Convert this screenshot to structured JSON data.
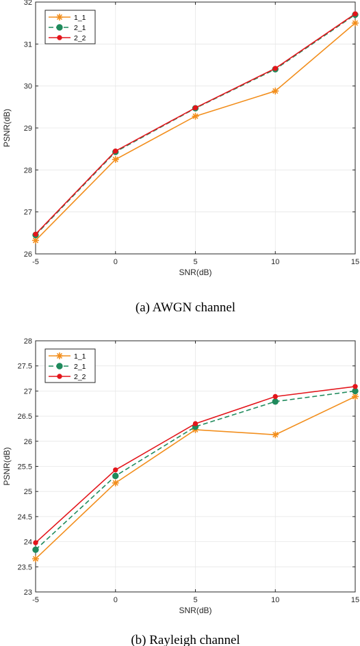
{
  "colors": {
    "s11": "#f28e1c",
    "s21": "#1f8a5c",
    "s22": "#e3151b"
  },
  "chart_data": [
    {
      "type": "line",
      "caption": "(a)  AWGN channel",
      "xlabel": "SNR(dB)",
      "ylabel": "PSNR(dB)",
      "x": [
        -5,
        0,
        5,
        10,
        15
      ],
      "xticks": [
        "-5",
        "0",
        "5",
        "10",
        "15"
      ],
      "xlim": [
        -5,
        15
      ],
      "ylim": [
        26,
        32
      ],
      "yticks": [
        "26",
        "27",
        "28",
        "29",
        "30",
        "31",
        "32"
      ],
      "grid": true,
      "legend": "top-left",
      "series": [
        {
          "name": "1_1",
          "values": [
            26.32,
            28.25,
            29.28,
            29.88,
            31.5
          ],
          "marker": "asterisk",
          "dash": "solid"
        },
        {
          "name": "2_1",
          "values": [
            26.45,
            28.43,
            29.47,
            30.4,
            31.7
          ],
          "marker": "circle",
          "dash": "dashed"
        },
        {
          "name": "2_2",
          "values": [
            26.47,
            28.45,
            29.48,
            30.42,
            31.72
          ],
          "marker": "dot",
          "dash": "solid"
        }
      ]
    },
    {
      "type": "line",
      "caption": "(b)  Rayleigh channel",
      "xlabel": "SNR(dB)",
      "ylabel": "PSNR(dB)",
      "x": [
        -5,
        0,
        5,
        10,
        15
      ],
      "xticks": [
        "-5",
        "0",
        "5",
        "10",
        "15"
      ],
      "xlim": [
        -5,
        15
      ],
      "ylim": [
        23,
        28
      ],
      "yticks": [
        "23",
        "23.5",
        "24",
        "24.5",
        "25",
        "25.5",
        "26",
        "26.5",
        "27",
        "27.5",
        "28"
      ],
      "grid": true,
      "legend": "top-left",
      "series": [
        {
          "name": "1_1",
          "values": [
            23.66,
            25.17,
            26.23,
            26.13,
            26.89
          ],
          "marker": "asterisk",
          "dash": "solid"
        },
        {
          "name": "2_1",
          "values": [
            23.84,
            25.31,
            26.29,
            26.79,
            27.0
          ],
          "marker": "circle",
          "dash": "dashed"
        },
        {
          "name": "2_2",
          "values": [
            23.98,
            25.43,
            26.35,
            26.89,
            27.09
          ],
          "marker": "dot",
          "dash": "solid"
        }
      ]
    }
  ]
}
